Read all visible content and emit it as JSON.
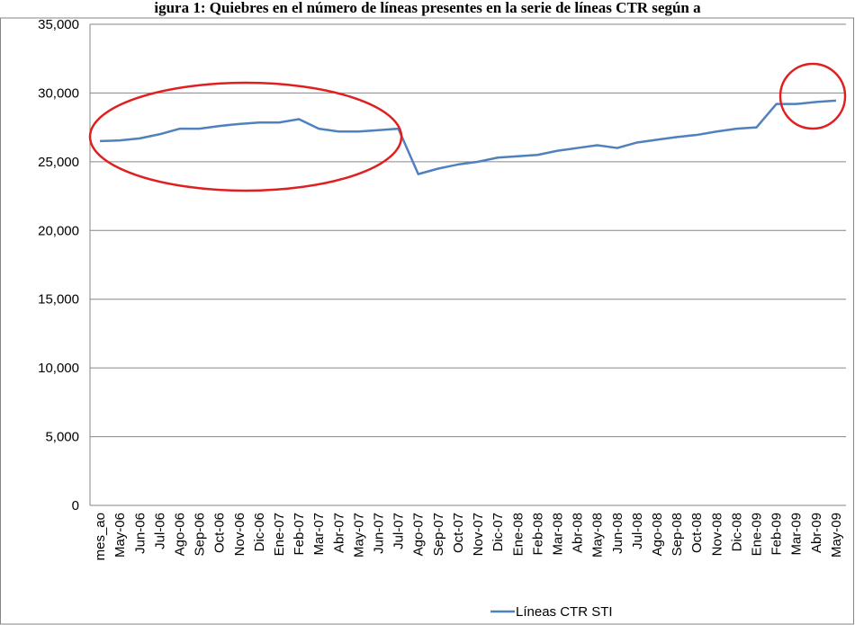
{
  "chart_data": {
    "type": "line",
    "title": "igura 1: Quiebres en el número de líneas presentes en la serie de líneas CTR según a",
    "categories": [
      "mes_ao",
      "May-06",
      "Jun-06",
      "Jul-06",
      "Ago-06",
      "Sep-06",
      "Oct-06",
      "Nov-06",
      "Dic-06",
      "Ene-07",
      "Feb-07",
      "Mar-07",
      "Abr-07",
      "May-07",
      "Jun-07",
      "Jul-07",
      "Ago-07",
      "Sep-07",
      "Oct-07",
      "Nov-07",
      "Dic-07",
      "Ene-08",
      "Feb-08",
      "Mar-08",
      "Abr-08",
      "May-08",
      "Jun-08",
      "Jul-08",
      "Ago-08",
      "Sep-08",
      "Oct-08",
      "Nov-08",
      "Dic-08",
      "Ene-09",
      "Feb-09",
      "Mar-09",
      "Abr-09",
      "May-09"
    ],
    "series": [
      {
        "name": "Líneas CTR STI",
        "color": "#4f81bd",
        "values": [
          26500,
          26550,
          26700,
          27000,
          27400,
          27400,
          27600,
          27750,
          27850,
          27850,
          28100,
          27400,
          27200,
          27200,
          27300,
          27400,
          24100,
          24500,
          24800,
          25000,
          25300,
          25400,
          25500,
          25800,
          26000,
          26200,
          26000,
          26400,
          26600,
          26800,
          26950,
          27200,
          27400,
          27500,
          29200,
          29200,
          29350,
          29450
        ]
      }
    ],
    "ylim": [
      0,
      35000
    ],
    "yticks": [
      0,
      {
        "value": 5000,
        "label": "5,000"
      },
      {
        "value": 10000,
        "label": "10,000"
      },
      {
        "value": 15000,
        "label": "15,000"
      },
      {
        "value": 20000,
        "label": "20,000"
      },
      {
        "value": 25000,
        "label": "25,000"
      },
      {
        "value": 30000,
        "label": "30,000"
      },
      {
        "value": 35000,
        "label": "35,000"
      }
    ],
    "grid": true,
    "legend": "bottom"
  }
}
